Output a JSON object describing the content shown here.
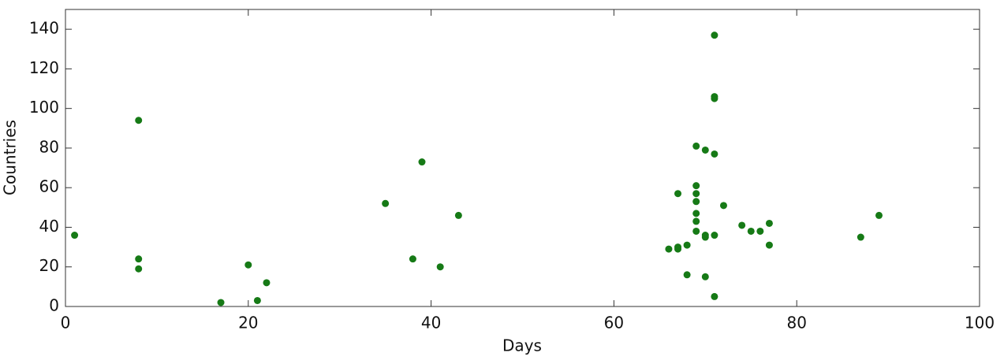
{
  "chart_data": {
    "type": "scatter",
    "x_label": "Days",
    "y_label": "Countries",
    "color": "#167a16",
    "x": [
      1,
      8,
      8,
      8,
      17,
      20,
      21,
      22,
      35,
      38,
      39,
      41,
      43,
      66,
      67,
      67,
      67,
      68,
      68,
      69,
      69,
      69,
      69,
      69,
      69,
      69,
      70,
      70,
      70,
      70,
      71,
      71,
      71,
      71,
      71,
      71,
      72,
      74,
      75,
      76,
      77,
      77,
      87,
      89
    ],
    "values": [
      36,
      94,
      24,
      19,
      2,
      21,
      3,
      12,
      52,
      24,
      73,
      20,
      46,
      29,
      57,
      30,
      29,
      31,
      16,
      81,
      61,
      57,
      53,
      47,
      43,
      38,
      79,
      36,
      35,
      15,
      137,
      106,
      105,
      77,
      36,
      5,
      51,
      41,
      38,
      38,
      42,
      31,
      35,
      46
    ],
    "xlim": [
      0,
      100
    ],
    "xticks": [
      0,
      20,
      40,
      60,
      80,
      100
    ],
    "ylim": [
      0,
      150
    ],
    "yticks": [
      0,
      20,
      40,
      60,
      80,
      100,
      120,
      140
    ],
    "grid": false
  }
}
